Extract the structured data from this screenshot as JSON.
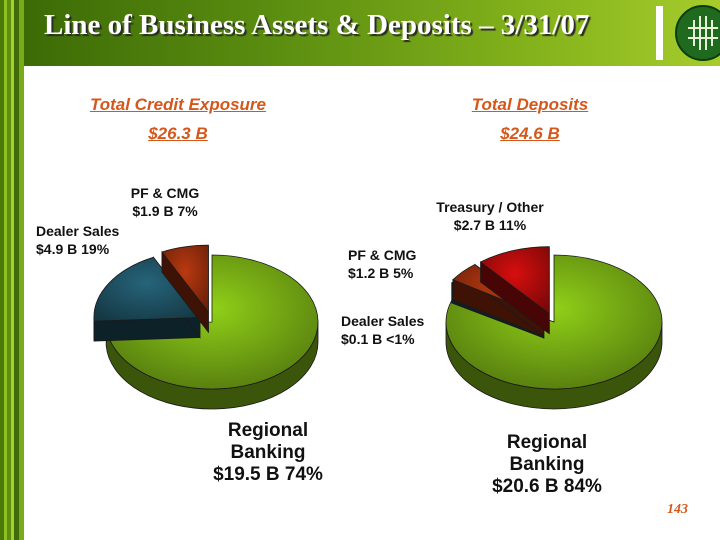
{
  "header": {
    "title": "Line of Business Assets & Deposits – 3/31/07"
  },
  "colors": {
    "regional": "#6b9a12",
    "dealer": "#1c4a5a",
    "pfcmg": "#8a2a0c",
    "treasury": "#a00a0a",
    "accent": "#d4581c",
    "header_green": "#5a8c10"
  },
  "page_number": "143",
  "logo_icon": "bank-logo-icon",
  "chart_data": [
    {
      "type": "pie",
      "title": "Total Credit Exposure",
      "subtitle": "$26.3 B",
      "slices": [
        {
          "name": "Regional Banking",
          "value": 19.5,
          "pct": 74,
          "label1": "Regional",
          "label2": "Banking",
          "label3": "$19.5 B   74%",
          "color": "#6b9a12"
        },
        {
          "name": "Dealer Sales",
          "value": 4.9,
          "pct": 19,
          "label1": "Dealer Sales",
          "label2": "$4.9 B  19%",
          "color": "#1c4a5a"
        },
        {
          "name": "PF & CMG",
          "value": 1.9,
          "pct": 7,
          "label1": "PF & CMG",
          "label2": "$1.9 B   7%",
          "color": "#8a2a0c"
        }
      ]
    },
    {
      "type": "pie",
      "title": "Total Deposits",
      "subtitle": "$24.6 B",
      "slices": [
        {
          "name": "Regional Banking",
          "value": 20.6,
          "pct": 84,
          "label1": "Regional",
          "label2": "Banking",
          "label3": "$20.6 B   84%",
          "color": "#6b9a12"
        },
        {
          "name": "Dealer Sales",
          "value": 0.1,
          "pct": "<1",
          "label1": "Dealer Sales",
          "label2": "$0.1 B  <1%",
          "color": "#1c4a5a"
        },
        {
          "name": "PF & CMG",
          "value": 1.2,
          "pct": 5,
          "label1": "PF & CMG",
          "label2": "$1.2 B  5%",
          "color": "#8a2a0c"
        },
        {
          "name": "Treasury / Other",
          "value": 2.7,
          "pct": 11,
          "label1": "Treasury / Other",
          "label2": "$2.7 B  11%",
          "color": "#a00a0a"
        }
      ]
    }
  ]
}
